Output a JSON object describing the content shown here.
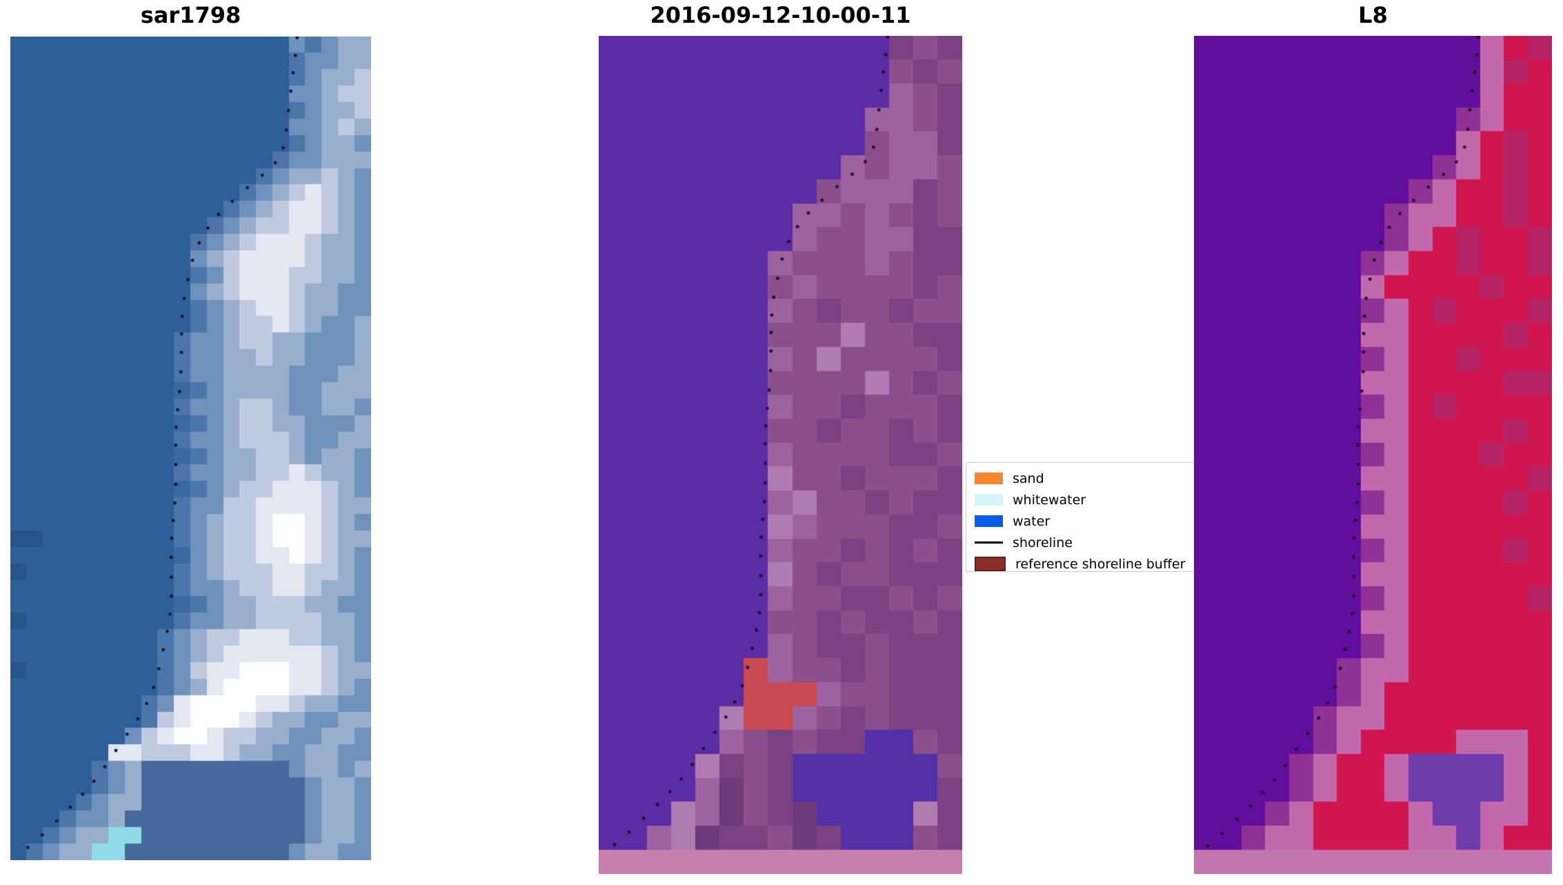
{
  "figure": {
    "background": "#ffffff"
  },
  "chart_data": {
    "type": "image",
    "description": "Three satellite image panels with dotted detected shoreline overlay and a class legend",
    "shoreline_path": [
      [
        0.795,
        0.0
      ],
      [
        0.782,
        0.04
      ],
      [
        0.773,
        0.09
      ],
      [
        0.765,
        0.125
      ],
      [
        0.745,
        0.148
      ],
      [
        0.7,
        0.168
      ],
      [
        0.645,
        0.188
      ],
      [
        0.585,
        0.212
      ],
      [
        0.53,
        0.243
      ],
      [
        0.497,
        0.278
      ],
      [
        0.482,
        0.32
      ],
      [
        0.472,
        0.39
      ],
      [
        0.464,
        0.46
      ],
      [
        0.457,
        0.53
      ],
      [
        0.451,
        0.6
      ],
      [
        0.445,
        0.67
      ],
      [
        0.438,
        0.715
      ],
      [
        0.422,
        0.757
      ],
      [
        0.393,
        0.795
      ],
      [
        0.35,
        0.83
      ],
      [
        0.303,
        0.862
      ],
      [
        0.252,
        0.893
      ],
      [
        0.197,
        0.921
      ],
      [
        0.14,
        0.948
      ],
      [
        0.077,
        0.974
      ],
      [
        0.012,
        0.998
      ]
    ],
    "shoreline_dot": {
      "spacing_px": 27,
      "radius_px": 2.4
    },
    "panels": [
      {
        "title": "sar1798",
        "shoreline_y_scale": 1.0,
        "dot_color": "#10122e",
        "palette": {
          "a": "#2f5f99",
          "b": "#3a68a0",
          "c": "#4c76a9",
          "d": "#6e92bc",
          "e": "#98aecd",
          "f": "#bfc9e0",
          "g": "#e4e8f3",
          "h": "#ffffff",
          "i": "#8fdbe8",
          "j": "#28558c",
          "k": "#46699c"
        },
        "pixel_rows": [
          "aaaaaaaaaaaaaaaaadcdee",
          "aaaaaaaaaaaaaaaaacddee",
          "aaaaaaaaaaaaaaaaacdeef",
          "aaaaaaaaaaaaaaaaaddeff",
          "aaaaaaaaaaaaaaaaacdeef",
          "aaaaaaaaaaaaaaaaaddefe",
          "aaaaaaaaaaaaaaaaacdeed",
          "aaaaaaaaaaaaaaaacddeee",
          "aaaaaaaaaaaaaaacdeefed",
          "aaaaaaaaaaaaaacdefgfed",
          "aaaaaaaaaaaaacdefggfed",
          "aaaaaaaaaaaacdeffggfed",
          "aaaaaaaaaaacdefgggfeed",
          "aaaaaaaaaaadefggggfeed",
          "aaaaaaaaaaacdfgggffeed",
          "aaaaaaaaaaadefgggfeedd",
          "aaaaaaaaaaacdefggfeedd",
          "aaaaaaaaaaacdeffgfedde",
          "aaaaaaaaaacddeffeeddde",
          "aaaaaaaaaacddeefeeddde",
          "aaaaaaaaaacddeeeedddee",
          "aaaaaaaaaabcdeeeeddeee",
          "aaaaaaaaaacddeffeddeed",
          "aaaaaaaaaabcdeffeeddde",
          "aaaaaaaaaacddefffeddee",
          "aaaaaaaaaabcdeeffedeed",
          "aaaaaaaaaacddeeffgfeed",
          "aaaaaaaaaabcdeffgggfed",
          "aaaaaaaaaacddffggggfee",
          "aaaaaaaaaacdeffghhgfed",
          "jjaaaaaaaacdeffghhgfee",
          "aaaaaaaaaabdeffgghgfed",
          "jaaaaaaaaacdefffggffed",
          "aaaaaaaaaacddeffggfeed",
          "aaaaaaaaaabcdeefffeedd",
          "jaaaaaaaaacddeeffffeed",
          "aaaaaaaaacdeffgggffeed",
          "aaaaaaaaacdefggggggfed",
          "jaaaaaaaacdfgghhhggfee",
          "aaaaaaaaacdeghhhhggfed",
          "aaaaaaaacdghhhhggfeedd",
          "aaaaaaaacfghhhgfeeddee",
          "aaaaaaadfghhgffeeddeed",
          "aaaaaaggfffggfeeddeedd",
          "aaaaacdekkkkkkkkkdeede",
          "aaaaacdekkkkkkkkkkdeed",
          "aaaacdeekkkkkkkkkkdeed",
          "aaacddekkkkkkkkkkkdeed",
          "aacdeeiikkkkkkkkkkdeed",
          "acdeeiikkkkkkkkkkdeedd"
        ]
      },
      {
        "title": "2016-09-12-10-00-11",
        "shoreline_y_scale": 0.978,
        "dot_color": "#180a30",
        "palette": {
          "a": "#5b2ca3",
          "b": "#8a4f8c",
          "c": "#9c63a0",
          "d": "#7b4283",
          "e": "#6e3a79",
          "f": "#b07bb2",
          "g": "#c84951",
          "h": "#c77fae",
          "i": "#5330a6"
        },
        "pixel_rows": [
          "aaaaaaaaaaaadbd",
          "aaaaaaaaaaaabdb",
          "aaaaaaaaaaaacbd",
          "aaaaaaaaaaaccbd",
          "aaaaaaaaaaabccd",
          "aaaaaaaaaacbccb",
          "aaaaaaaaabcccdb",
          "aaaaaaaaccbcbdb",
          "aaaaaaaacbbccdd",
          "aaaaaaacbbbcbdd",
          "aaaaaaabcbbbbdb",
          "aaaaaaacbdbbdbb",
          "aaaaaaabbbfbbdd",
          "aaaaaaacbfbbbbd",
          "aaaaaaabbbbfbdb",
          "aaaaaaacbbdbbbd",
          "aaaaaaabbdbbdbd",
          "aaaaaaacbbbbddb",
          "aaaaaaafbbdbbbd",
          "aaaaaaacfbbdbdd",
          "aaaaaaafcbbbddb",
          "aaaaaaacbbdbdbd",
          "aaaaaaafbdbbddd",
          "aaaaaaacbbddbdb",
          "aaaaaaabbdbddbd",
          "aaaaaaacbddbddd",
          "aaaaaagcbbdbddd",
          "aaaaaagggcbbddd",
          "aaaaafggcbdbddd",
          "aaaaacbdbddiibd",
          "aaaafdbdiiiiiib",
          "aaaacebdiiiiiid",
          "aaafcebdeiiiifd",
          "aacfeddbediiibd",
          "hhhhhhhhhhhhhhh"
        ]
      },
      {
        "title": "L8",
        "shoreline_y_scale": 0.978,
        "dot_color": "#150521",
        "palette": {
          "a": "#600e9b",
          "b": "#d01550",
          "c": "#b62364",
          "d": "#c468ae",
          "e": "#903295",
          "h": "#c474ae",
          "i": "#6d3cac"
        },
        "pixel_rows": [
          "aaaaaaaaaaaadbc",
          "aaaaaaaaaaaadcb",
          "aaaaaaaaaaaadbb",
          "aaaaaaaaaaaedbb",
          "aaaaaaaaaaadbcb",
          "aaaaaaaaaaedbcb",
          "aaaaaaaaaedbbcb",
          "aaaaaaaaeddbbcb",
          "aaaaaaaaedbcbbc",
          "aaaaaaaedbbcbbc",
          "aaaaaaadbbbbcbb",
          "aaaaaaaedbcbbbc",
          "aaaaaaaddbbbbcb",
          "aaaaaaaedbbcbbb",
          "aaaaaaaddbbbbcc",
          "aaaaaaaedbcbbbb",
          "aaaaaaaddbbbbcb",
          "aaaaaaaedbbbcbb",
          "aaaaaaaddbbbbbc",
          "aaaaaaaedbbbbcb",
          "aaaaaaaddbbbbbb",
          "aaaaaaaedbbbbcb",
          "aaaaaaaddbbbbbb",
          "aaaaaaaedbbbbbc",
          "aaaaaaaddbbbbbb",
          "aaaaaaaedbbbbbb",
          "aaaaaaeddbbbbbb",
          "aaaaaaedbbbbbbb",
          "aaaaaeddbbbbbbb",
          "aaaaaedbbbbdddb",
          "aaaaedbbdiiiidb",
          "aaaaedbbdiiiidb",
          "aaaedbbbbdiiddb",
          "aaeddbbbbddidbb",
          "hhhhhhhhhhhhhhh"
        ]
      }
    ],
    "legend": {
      "items": [
        {
          "label": "sand",
          "swatch": "patch",
          "color": "#f5872f"
        },
        {
          "label": "whitewater",
          "swatch": "patch",
          "color": "#d4f6f8"
        },
        {
          "label": "water",
          "swatch": "patch",
          "color": "#0b5ce8"
        },
        {
          "label": "shoreline",
          "swatch": "line",
          "color": "#000000"
        },
        {
          "label": "reference shoreline buffer",
          "swatch": "patch",
          "color": "#8c2c28",
          "border_color": "#5f1f1c"
        }
      ]
    }
  }
}
